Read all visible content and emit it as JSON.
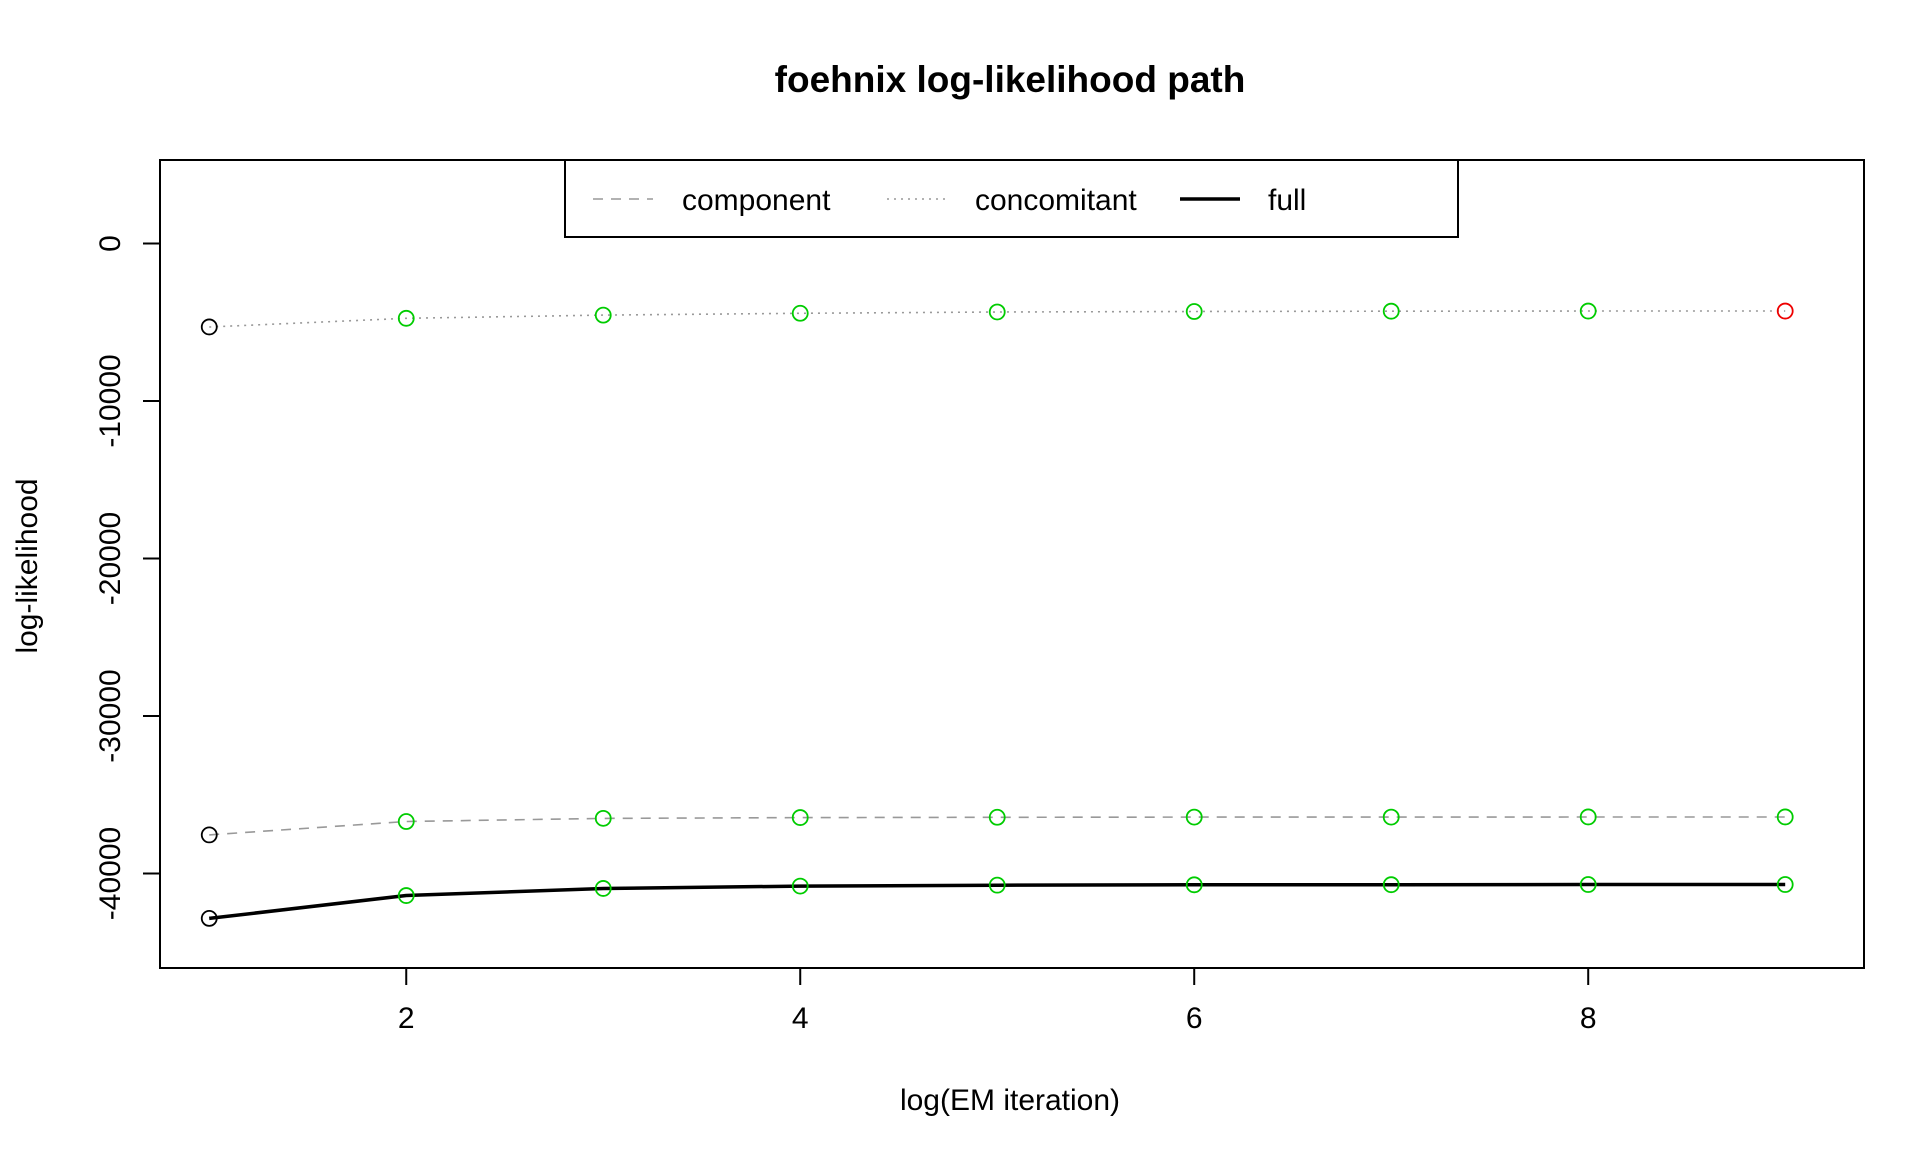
{
  "chart_data": {
    "type": "line",
    "title": "foehnix log-likelihood path",
    "xlabel": "log(EM iteration)",
    "ylabel": "log-likelihood",
    "xlim": [
      0.75,
      9.4
    ],
    "ylim": [
      -46000,
      5300
    ],
    "x_ticks": [
      2,
      4,
      6,
      8
    ],
    "x_tick_labels": [
      "2",
      "4",
      "6",
      "8"
    ],
    "y_ticks": [
      0,
      -10000,
      -20000,
      -30000,
      -40000
    ],
    "y_tick_labels": [
      "0",
      "-10000",
      "-20000",
      "-30000",
      "-40000"
    ],
    "grid": false,
    "legend_position": "top-center",
    "x": [
      1,
      2,
      3,
      4,
      5,
      6,
      7,
      8,
      9
    ],
    "series": [
      {
        "name": "component",
        "line_style": "dashed",
        "color": "#999999",
        "line_width": 1,
        "values": [
          -37550,
          -36700,
          -36500,
          -36450,
          -36430,
          -36420,
          -36420,
          -36410,
          -36410
        ]
      },
      {
        "name": "concomitant",
        "line_style": "dotted",
        "color": "#999999",
        "line_width": 1,
        "values": [
          -5300,
          -4750,
          -4550,
          -4430,
          -4350,
          -4320,
          -4300,
          -4290,
          -4290
        ]
      },
      {
        "name": "full",
        "line_style": "solid",
        "color": "#000000",
        "line_width": 3,
        "values": [
          -42850,
          -41400,
          -40950,
          -40800,
          -40740,
          -40720,
          -40710,
          -40700,
          -40700
        ]
      }
    ],
    "marker_colors": {
      "first": "#000000",
      "middle": "#00cc00",
      "last_concomitant": "#ee0000"
    }
  }
}
